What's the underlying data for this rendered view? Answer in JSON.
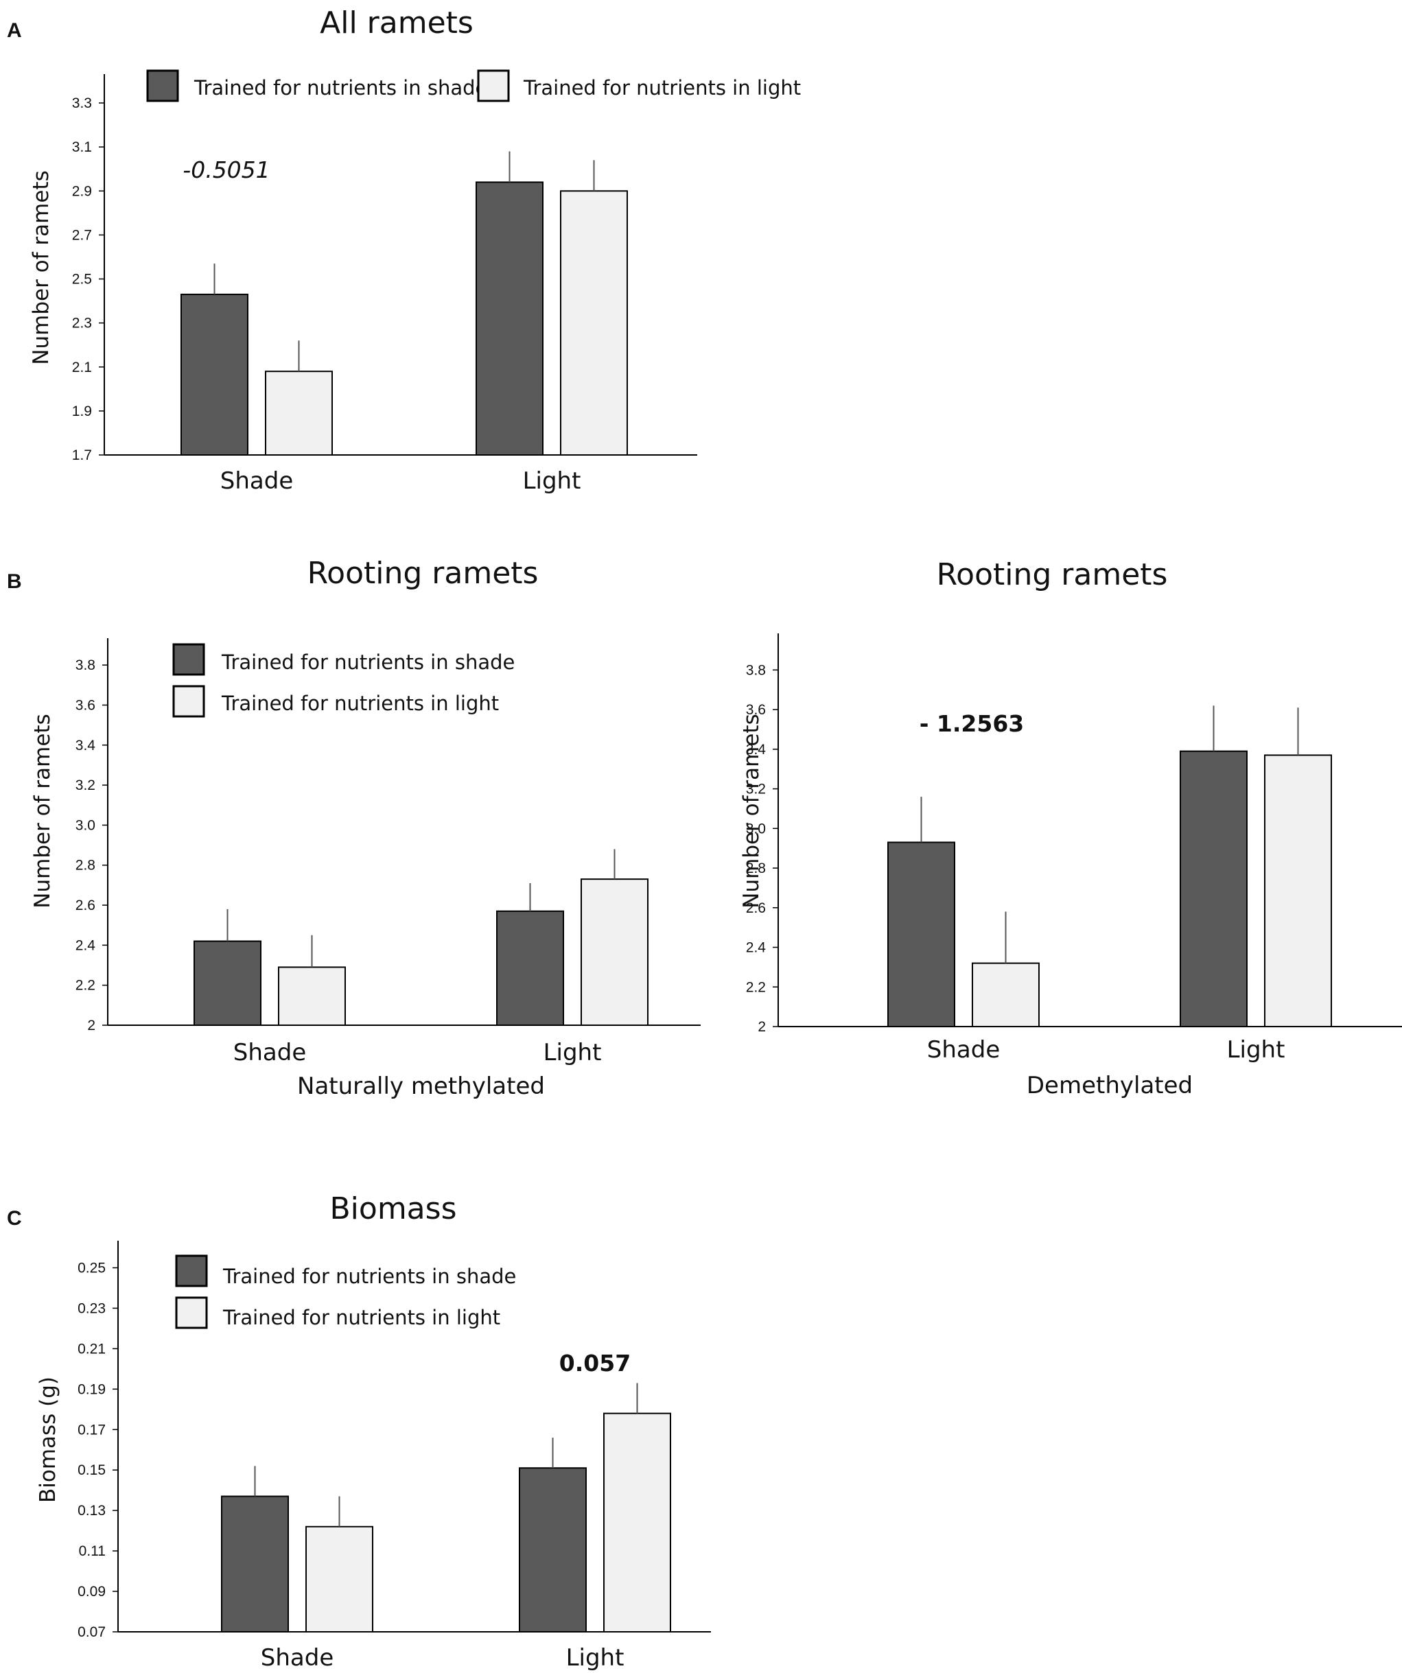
{
  "colors": {
    "shade_trained": "#5a5a5a",
    "light_trained": "#f1f1f1",
    "axis": "#000000",
    "error_bar": "#555555"
  },
  "chart_data": [
    {
      "id": "A",
      "panel_letter": "A",
      "type": "bar",
      "title": "All ramets",
      "ylabel": "Number of ramets",
      "xlabel": "",
      "categories": [
        "Shade",
        "Light"
      ],
      "ylim": [
        1.7,
        3.4
      ],
      "yticks": [
        "1.7",
        "1.9",
        "2.1",
        "2.3",
        "2.5",
        "2.7",
        "2.9",
        "3.1",
        "3.3"
      ],
      "series": [
        {
          "name": "Trained for nutrients in shade",
          "color": "#5a5a5a",
          "values": [
            2.43,
            2.94
          ],
          "errors": [
            0.14,
            0.14
          ]
        },
        {
          "name": "Trained for nutrients in light",
          "color": "#f1f1f1",
          "values": [
            2.08,
            2.9
          ],
          "errors": [
            0.14,
            0.14
          ]
        }
      ],
      "legend": {
        "placement": "top",
        "layout": "horizontal"
      },
      "annotation": {
        "text": "-0.5051",
        "style": "italic",
        "category_index": 0,
        "y": 2.96
      }
    },
    {
      "id": "B1",
      "panel_letter": "B",
      "type": "bar",
      "title": "Rooting ramets",
      "ylabel": "Number of ramets",
      "xlabel": "Naturally methylated",
      "categories": [
        "Shade",
        "Light"
      ],
      "ylim": [
        2.0,
        3.9
      ],
      "yticks": [
        "2",
        "2.2",
        "2.4",
        "2.6",
        "2.8",
        "3.0",
        "3.2",
        "3.4",
        "3.6",
        "3.8"
      ],
      "series": [
        {
          "name": "Trained for nutrients in shade",
          "color": "#5a5a5a",
          "values": [
            2.42,
            2.57
          ],
          "errors": [
            0.16,
            0.14
          ]
        },
        {
          "name": "Trained for nutrients in light",
          "color": "#f1f1f1",
          "values": [
            2.29,
            2.73
          ],
          "errors": [
            0.16,
            0.15
          ]
        }
      ],
      "legend": {
        "placement": "top-left",
        "layout": "vertical"
      },
      "annotation": null
    },
    {
      "id": "B2",
      "panel_letter": "",
      "type": "bar",
      "title": "Rooting ramets",
      "ylabel": "Number of ramets",
      "xlabel": "Demethylated",
      "categories": [
        "Shade",
        "Light"
      ],
      "ylim": [
        2.0,
        3.95
      ],
      "yticks": [
        "2",
        "2.2",
        "2.4",
        "2.6",
        "2.8",
        "3.0",
        "3.2",
        "3.4",
        "3.6",
        "3.8"
      ],
      "series": [
        {
          "name": "Trained for nutrients in shade",
          "color": "#5a5a5a",
          "values": [
            2.93,
            3.39
          ],
          "errors": [
            0.23,
            0.23
          ]
        },
        {
          "name": "Trained for nutrients in light",
          "color": "#f1f1f1",
          "values": [
            2.32,
            3.37
          ],
          "errors": [
            0.26,
            0.24
          ]
        }
      ],
      "legend": null,
      "annotation": {
        "text": "- 1.2563",
        "style": "bold",
        "category_index": 0,
        "y": 3.49
      }
    },
    {
      "id": "C",
      "panel_letter": "C",
      "type": "bar",
      "title": "Biomass",
      "ylabel": "Biomass (g)",
      "xlabel": "",
      "categories": [
        "Shade",
        "Light"
      ],
      "ylim": [
        0.07,
        0.26
      ],
      "yticks": [
        "0.07",
        "0.09",
        "0.11",
        "0.13",
        "0.15",
        "0.17",
        "0.19",
        "0.21",
        "0.23",
        "0.25"
      ],
      "series": [
        {
          "name": "Trained for nutrients in shade",
          "color": "#5a5a5a",
          "values": [
            0.137,
            0.151
          ],
          "errors": [
            0.015,
            0.015
          ]
        },
        {
          "name": "Trained for nutrients in light",
          "color": "#f1f1f1",
          "values": [
            0.122,
            0.178
          ],
          "errors": [
            0.015,
            0.015
          ]
        }
      ],
      "legend": {
        "placement": "top-left",
        "layout": "vertical"
      },
      "annotation": {
        "text": "0.057",
        "style": "bold",
        "category_index": 1,
        "y": 0.199
      }
    }
  ]
}
